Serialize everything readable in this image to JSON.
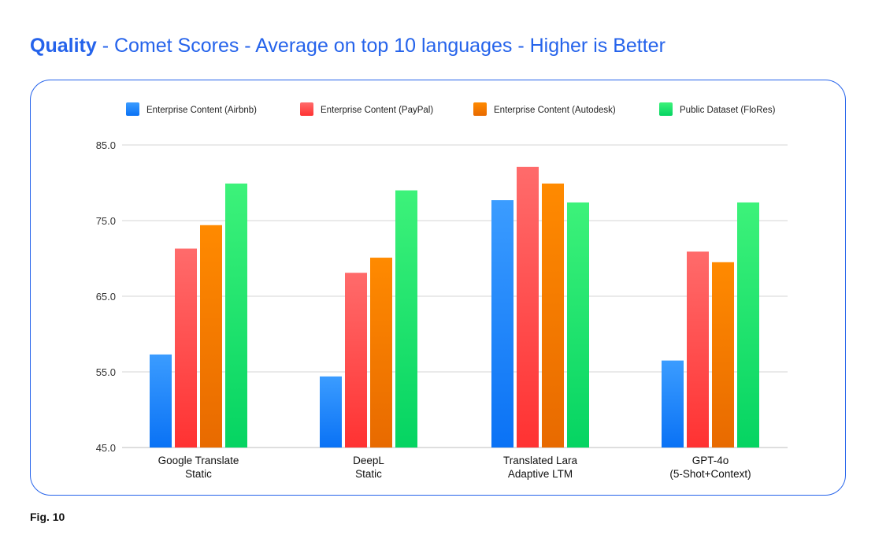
{
  "header": {
    "title_strong": "Quality",
    "title_rest": " - Comet Scores - Average on top 10 languages - Higher is Better"
  },
  "figure_label": "Fig. 10",
  "chart_data": {
    "type": "bar",
    "title": "Quality - Comet Scores - Average on top 10 languages - Higher is Better",
    "xlabel": "",
    "ylabel": "",
    "ylim": [
      45,
      85
    ],
    "yticks": [
      45,
      55,
      65,
      75,
      85
    ],
    "ytick_labels": [
      "45.0",
      "55.0",
      "65.0",
      "75.0",
      "85.0"
    ],
    "grid": true,
    "legend_position": "top",
    "categories": [
      [
        "Google Translate",
        "Static"
      ],
      [
        "DeepL",
        "Static"
      ],
      [
        "Translated Lara",
        "Adaptive LTM"
      ],
      [
        "GPT-4o",
        "(5-Shot+Context)"
      ]
    ],
    "series": [
      {
        "name": "Enterprise Content (Airbnb)",
        "color_top": "#3b9cff",
        "color_bottom": "#0a72f5",
        "values": [
          57.3,
          54.4,
          77.7,
          56.5
        ]
      },
      {
        "name": "Enterprise Content (PayPal)",
        "color_top": "#ff6b6b",
        "color_bottom": "#ff3232",
        "values": [
          71.3,
          68.1,
          82.1,
          70.9
        ]
      },
      {
        "name": "Enterprise Content (Autodesk)",
        "color_top": "#ff8a00",
        "color_bottom": "#e86a00",
        "values": [
          74.4,
          70.1,
          79.9,
          69.5
        ]
      },
      {
        "name": "Public Dataset (FloRes)",
        "color_top": "#3df27a",
        "color_bottom": "#05d462",
        "values": [
          79.9,
          79.0,
          77.4,
          77.4
        ]
      }
    ]
  }
}
